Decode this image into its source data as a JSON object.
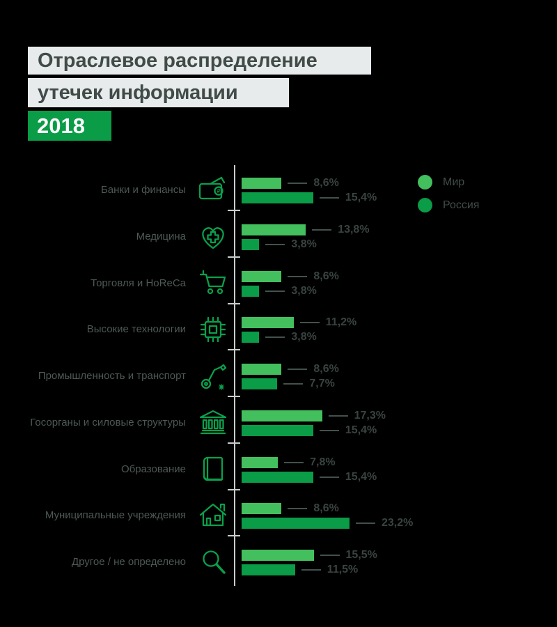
{
  "title": {
    "line1": "Отраслевое распределение",
    "line2": "утечек информации",
    "year": "2018"
  },
  "colors": {
    "world_green": "#43C05D",
    "russia_green": "#0A9C46",
    "icon_green": "#0AA04B",
    "title_background": "#E7EBEC",
    "year_badge_background": "#0A9C46"
  },
  "chart_data": {
    "type": "bar",
    "orientation": "horizontal",
    "unit": "%",
    "title": "Отраслевое распределение утечек информации, 2018",
    "xlim": [
      0,
      25
    ],
    "grid": false,
    "legend_position": "top-right",
    "categories": [
      "Банки и финансы",
      "Медицина",
      "Торговля и HoReCa",
      "Высокие технологии",
      "Промышленность и транспорт",
      "Госорганы и силовые структуры",
      "Образование",
      "Муниципальные учреждения",
      "Другое / не определено"
    ],
    "category_icons": [
      "wallet-icon",
      "medical-heart-icon",
      "shopping-cart-icon",
      "chip-icon",
      "robot-arm-icon",
      "bank-building-icon",
      "book-icon",
      "house-icon",
      "magnifier-icon"
    ],
    "series": [
      {
        "name": "Мир",
        "color": "#43C05D",
        "values": [
          8.6,
          13.8,
          8.6,
          11.2,
          8.6,
          17.3,
          7.8,
          8.6,
          15.5
        ],
        "labels": [
          "8,6%",
          "13,8%",
          "8,6%",
          "11,2%",
          "8,6%",
          "17,3%",
          "7,8%",
          "8,6%",
          "15,5%"
        ]
      },
      {
        "name": "Россия",
        "color": "#0A9C46",
        "values": [
          15.4,
          3.8,
          3.8,
          3.8,
          7.7,
          15.4,
          15.4,
          23.2,
          11.5
        ],
        "labels": [
          "15,4%",
          "3,8%",
          "3,8%",
          "3,8%",
          "7,7%",
          "15,4%",
          "15,4%",
          "23,2%",
          "11,5%"
        ]
      }
    ]
  }
}
